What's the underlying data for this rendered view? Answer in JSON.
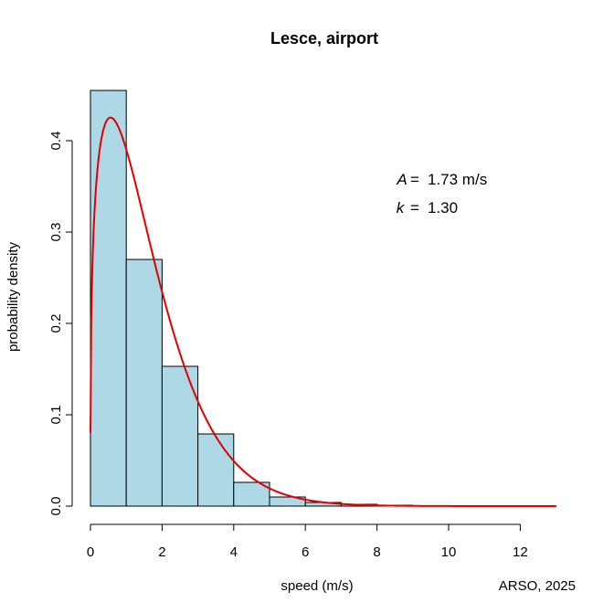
{
  "chart_data": {
    "type": "bar",
    "title": "Lesce, airport",
    "xlabel": "speed (m/s)",
    "ylabel": "probability density",
    "xlim": [
      0,
      13
    ],
    "ylim": [
      0,
      0.455
    ],
    "xticks": [
      0,
      2,
      4,
      6,
      8,
      10,
      12
    ],
    "yticks": [
      0.0,
      0.1,
      0.2,
      0.3,
      0.4
    ],
    "xtick_labels": [
      "0",
      "2",
      "4",
      "6",
      "8",
      "10",
      "12"
    ],
    "ytick_labels": [
      "0.0",
      "0.1",
      "0.2",
      "0.3",
      "0.4"
    ],
    "bins": [
      {
        "from": 0,
        "to": 1,
        "density": 0.455
      },
      {
        "from": 1,
        "to": 2,
        "density": 0.27
      },
      {
        "from": 2,
        "to": 3,
        "density": 0.153
      },
      {
        "from": 3,
        "to": 4,
        "density": 0.079
      },
      {
        "from": 4,
        "to": 5,
        "density": 0.026
      },
      {
        "from": 5,
        "to": 6,
        "density": 0.01
      },
      {
        "from": 6,
        "to": 7,
        "density": 0.004
      },
      {
        "from": 7,
        "to": 8,
        "density": 0.002
      },
      {
        "from": 8,
        "to": 9,
        "density": 0.001
      },
      {
        "from": 9,
        "to": 10,
        "density": 0.0004
      },
      {
        "from": 10,
        "to": 11,
        "density": 0.0002
      },
      {
        "from": 11,
        "to": 12,
        "density": 0.0001
      },
      {
        "from": 12,
        "to": 13,
        "density": 0.0001
      }
    ],
    "fit_curve": {
      "type": "weibull",
      "A": 1.73,
      "k": 1.3,
      "color": "#e00000"
    },
    "annotations": {
      "a_symbol": "A",
      "a_equals": "=",
      "a_value": "1.73 m/s",
      "k_symbol": "k",
      "k_equals": "=",
      "k_value": "1.30"
    },
    "credit": "ARSO, 2025",
    "colors": {
      "bar_fill": "#add8e6",
      "bar_stroke": "#000000",
      "axis": "#000000"
    }
  }
}
